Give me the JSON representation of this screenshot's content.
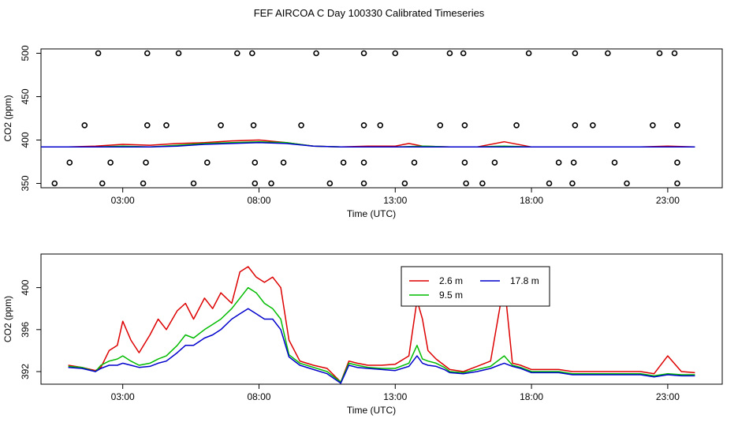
{
  "page_title": "FEF AIRCOA C  Day 100330  Calibrated Timeseries",
  "colors": {
    "red": "#dd0000",
    "green": "#00bb00",
    "blue": "#0000cc",
    "points": "#000000"
  },
  "chart_data": [
    {
      "type": "scatter",
      "xlabel": "Time (UTC)",
      "ylabel": "CO2 (ppm)",
      "xlim": [
        0.0,
        25.0
      ],
      "ylim": [
        345,
        505
      ],
      "xticks": [
        3,
        8,
        13,
        18,
        23
      ],
      "xtick_labels": [
        "03:00",
        "08:00",
        "13:00",
        "18:00",
        "23:00"
      ],
      "yticks": [
        350,
        400,
        450,
        500
      ],
      "ytick_labels": [
        "350",
        "400",
        "450",
        "500"
      ],
      "points": [
        [
          2.1,
          500
        ],
        [
          3.9,
          500
        ],
        [
          5.05,
          500
        ],
        [
          7.2,
          500
        ],
        [
          7.75,
          500
        ],
        [
          10.1,
          500
        ],
        [
          11.85,
          500
        ],
        [
          13.0,
          500
        ],
        [
          15.0,
          500
        ],
        [
          15.5,
          500
        ],
        [
          17.9,
          500
        ],
        [
          19.6,
          500
        ],
        [
          20.8,
          500
        ],
        [
          22.7,
          500
        ],
        [
          23.25,
          500
        ],
        [
          1.6,
          417
        ],
        [
          3.9,
          417
        ],
        [
          4.6,
          417
        ],
        [
          6.6,
          417
        ],
        [
          7.8,
          417
        ],
        [
          9.55,
          417
        ],
        [
          11.85,
          417
        ],
        [
          12.45,
          417
        ],
        [
          14.65,
          417
        ],
        [
          15.55,
          417
        ],
        [
          17.45,
          417
        ],
        [
          19.6,
          417
        ],
        [
          20.25,
          417
        ],
        [
          22.45,
          417
        ],
        [
          23.35,
          417
        ],
        [
          1.05,
          374
        ],
        [
          2.55,
          374
        ],
        [
          3.85,
          374
        ],
        [
          6.1,
          374
        ],
        [
          7.85,
          374
        ],
        [
          8.9,
          374
        ],
        [
          11.1,
          374
        ],
        [
          11.85,
          374
        ],
        [
          13.7,
          374
        ],
        [
          15.55,
          374
        ],
        [
          16.65,
          374
        ],
        [
          19.0,
          374
        ],
        [
          19.55,
          374
        ],
        [
          21.05,
          374
        ],
        [
          23.35,
          374
        ],
        [
          0.5,
          350
        ],
        [
          2.25,
          350
        ],
        [
          3.75,
          350
        ],
        [
          5.6,
          350
        ],
        [
          7.85,
          350
        ],
        [
          8.45,
          350
        ],
        [
          10.6,
          350
        ],
        [
          11.85,
          350
        ],
        [
          13.35,
          350
        ],
        [
          15.6,
          350
        ],
        [
          16.2,
          350
        ],
        [
          18.65,
          350
        ],
        [
          19.5,
          350
        ],
        [
          21.5,
          350
        ],
        [
          23.35,
          350
        ]
      ],
      "series": [
        {
          "color": "red",
          "x": [
            0,
            1,
            2,
            3,
            4,
            5,
            6,
            7,
            8,
            9,
            10,
            11,
            12,
            13,
            13.5,
            14,
            15,
            16,
            17,
            18,
            19,
            20,
            21,
            22,
            23,
            24
          ],
          "values": [
            392,
            392,
            393,
            395,
            394,
            396,
            397,
            399,
            400,
            397,
            393,
            392,
            393,
            393,
            396,
            393,
            392,
            392,
            398,
            392,
            392,
            392,
            392,
            392,
            393,
            392
          ]
        },
        {
          "color": "green",
          "x": [
            0,
            1,
            2,
            3,
            4,
            5,
            6,
            7,
            8,
            9,
            10,
            11,
            12,
            13,
            14,
            15,
            16,
            17,
            18,
            19,
            20,
            21,
            22,
            23,
            24
          ],
          "values": [
            392,
            392,
            392,
            393,
            392,
            394,
            396,
            397,
            398,
            397,
            393,
            392,
            392,
            392,
            393,
            392,
            392,
            393,
            392,
            392,
            392,
            392,
            392,
            392,
            392
          ]
        },
        {
          "color": "blue",
          "x": [
            0,
            1,
            2,
            3,
            4,
            5,
            6,
            7,
            8,
            9,
            10,
            11,
            12,
            13,
            14,
            15,
            16,
            17,
            18,
            19,
            20,
            21,
            22,
            23,
            24
          ],
          "values": [
            392,
            392,
            392,
            392,
            392,
            393,
            395,
            396,
            397,
            396,
            393,
            392,
            392,
            392,
            392,
            392,
            392,
            392,
            392,
            392,
            392,
            392,
            392,
            392,
            392
          ]
        }
      ]
    },
    {
      "type": "line",
      "xlabel": "Time (UTC)",
      "ylabel": "CO2 (ppm)",
      "xlim": [
        0.0,
        25.0
      ],
      "ylim": [
        390.8,
        403.2
      ],
      "xticks": [
        3,
        8,
        13,
        18,
        23
      ],
      "xtick_labels": [
        "03:00",
        "08:00",
        "13:00",
        "18:00",
        "23:00"
      ],
      "yticks": [
        392,
        396,
        400
      ],
      "ytick_labels": [
        "392",
        "396",
        "400"
      ],
      "legend": {
        "position": "top-center",
        "entries": [
          {
            "label": "2.6 m",
            "color": "red"
          },
          {
            "label": "17.8 m",
            "color": "blue"
          },
          {
            "label": "9.5 m",
            "color": "green"
          }
        ]
      },
      "x": [
        1.0,
        1.5,
        2.0,
        2.2,
        2.5,
        2.8,
        3.0,
        3.3,
        3.6,
        4.0,
        4.3,
        4.6,
        5.0,
        5.3,
        5.6,
        6.0,
        6.3,
        6.6,
        7.0,
        7.3,
        7.6,
        7.9,
        8.2,
        8.5,
        8.8,
        9.1,
        9.5,
        10.0,
        10.5,
        11.0,
        11.3,
        11.6,
        12.0,
        12.5,
        13.0,
        13.5,
        13.8,
        14.0,
        14.2,
        14.5,
        14.8,
        15.0,
        15.5,
        16.0,
        16.5,
        17.0,
        17.3,
        17.6,
        18.0,
        18.5,
        19.0,
        19.5,
        20.0,
        20.5,
        21.0,
        21.5,
        22.0,
        22.5,
        23.0,
        23.5,
        24.0
      ],
      "series": [
        {
          "name": "2.6 m",
          "color": "red",
          "values": [
            392.6,
            392.4,
            392.1,
            392.4,
            394.0,
            394.5,
            396.8,
            395.0,
            393.8,
            395.5,
            397.0,
            396.0,
            397.8,
            398.5,
            397.0,
            399.0,
            398.0,
            399.5,
            398.5,
            401.5,
            402.0,
            401.0,
            400.5,
            401.0,
            400.0,
            395.0,
            393.0,
            392.6,
            392.3,
            391.0,
            393.0,
            392.8,
            392.6,
            392.6,
            392.7,
            393.5,
            398.8,
            397.0,
            394.0,
            393.2,
            392.6,
            392.2,
            392.0,
            392.5,
            393.0,
            400.5,
            392.8,
            392.6,
            392.2,
            392.2,
            392.2,
            392.0,
            392.0,
            392.0,
            392.0,
            392.0,
            392.0,
            391.8,
            393.5,
            392.0,
            391.9
          ]
        },
        {
          "name": "9.5 m",
          "color": "green",
          "values": [
            392.5,
            392.4,
            392.0,
            392.6,
            393.0,
            393.2,
            393.5,
            393.0,
            392.6,
            392.8,
            393.2,
            393.5,
            394.5,
            395.5,
            395.2,
            396.0,
            396.5,
            397.0,
            398.0,
            399.0,
            400.0,
            399.5,
            398.5,
            398.0,
            397.0,
            393.6,
            392.8,
            392.4,
            392.0,
            391.0,
            392.8,
            392.6,
            392.4,
            392.3,
            392.3,
            392.8,
            394.5,
            393.2,
            393.0,
            392.8,
            392.4,
            392.0,
            391.9,
            392.2,
            392.5,
            393.5,
            392.6,
            392.4,
            392.0,
            392.0,
            392.0,
            391.8,
            391.8,
            391.8,
            391.8,
            391.8,
            391.8,
            391.6,
            391.8,
            391.7,
            391.7
          ]
        },
        {
          "name": "17.8 m",
          "color": "blue",
          "values": [
            392.4,
            392.3,
            392.0,
            392.3,
            392.6,
            392.6,
            392.8,
            392.6,
            392.4,
            392.5,
            392.8,
            393.0,
            393.8,
            394.5,
            394.5,
            395.2,
            395.5,
            396.0,
            397.0,
            397.5,
            398.0,
            397.5,
            397.0,
            397.0,
            396.0,
            393.4,
            392.6,
            392.2,
            391.8,
            390.9,
            392.6,
            392.4,
            392.3,
            392.2,
            392.1,
            392.5,
            393.5,
            392.8,
            392.6,
            392.5,
            392.2,
            391.9,
            391.8,
            392.0,
            392.3,
            392.8,
            392.5,
            392.3,
            391.9,
            391.9,
            391.9,
            391.7,
            391.7,
            391.7,
            391.7,
            391.7,
            391.7,
            391.5,
            391.7,
            391.6,
            391.6
          ]
        }
      ]
    }
  ]
}
